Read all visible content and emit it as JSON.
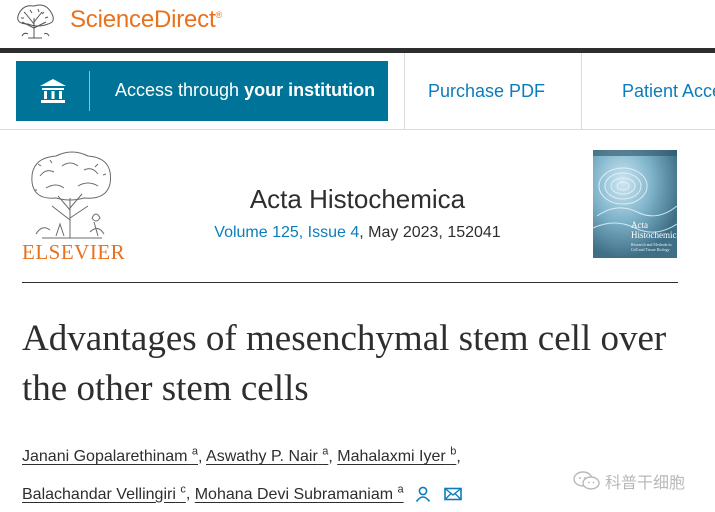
{
  "header": {
    "site_name": "ScienceDirect",
    "site_name_mark": "®",
    "logo_icon": "elsevier-tree-icon",
    "brand_color": "#e9711c"
  },
  "access_bar": {
    "institution_button": {
      "prefix": "Access through",
      "bold": "your institution",
      "icon": "institution-building-icon",
      "bg_color": "#007398"
    },
    "purchase_pdf": "Purchase PDF",
    "patient_access": "Patient Acce",
    "link_color": "#0c7dbb"
  },
  "journal": {
    "publisher": "ELSEVIER",
    "title": "Acta Histochemica",
    "volume_issue": "Volume 125, Issue 4",
    "date_pages": ", May 2023, 152041",
    "cover": {
      "journal_line1": "Acta",
      "journal_line2": "Histochemica",
      "subtitle": "Research and Methods in Cell and Tissue Biology"
    }
  },
  "article": {
    "title": "Advantages of mesenchymal stem cell over the other stem cells",
    "authors": [
      {
        "name": "Janani Gopalarethinam",
        "aff": "a"
      },
      {
        "name": "Aswathy P. Nair",
        "aff": "a"
      },
      {
        "name": "Mahalaxmi Iyer",
        "aff": "b"
      },
      {
        "name": "Balachandar Vellingiri",
        "aff": "c"
      },
      {
        "name": "Mohana Devi Subramaniam",
        "aff": "a"
      }
    ],
    "contact_icons": [
      "person-icon",
      "mail-icon"
    ]
  },
  "watermark": {
    "text": "科普干细胞",
    "icon": "wechat-icon"
  }
}
